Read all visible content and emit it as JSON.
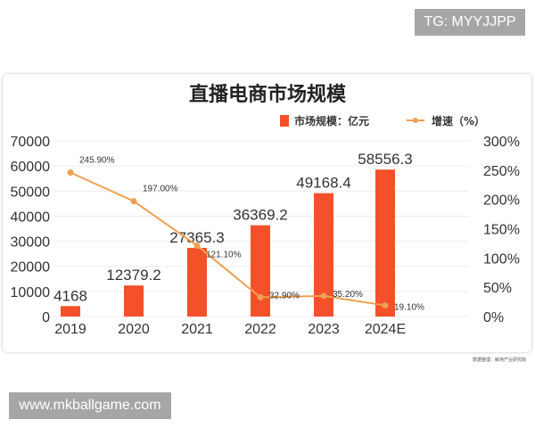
{
  "watermarks": {
    "top": "TG: MYYJJPP",
    "bottom": "www.mkballgame.com"
  },
  "source_note": "数据整理：鲸地产业研究院",
  "colors": {
    "bar": "#f4502a",
    "line": "#f0a050",
    "grid": "#ececec"
  },
  "chart_data": {
    "type": "bar+line",
    "title": "直播电商市场规模",
    "categories": [
      "2019",
      "2020",
      "2021",
      "2022",
      "2023",
      "2024E"
    ],
    "series": [
      {
        "name": "市场规模：亿元",
        "type": "bar",
        "axis": "left",
        "values": [
          4168,
          12379.2,
          27365.3,
          36369.2,
          49168.4,
          58556.3
        ],
        "labels": [
          "4168",
          "12379.2",
          "27365.3",
          "36369.2",
          "49168.4",
          "58556.3"
        ]
      },
      {
        "name": "增速（%）",
        "type": "line",
        "axis": "right",
        "values": [
          245.9,
          197.0,
          121.1,
          32.9,
          35.2,
          19.1
        ],
        "labels": [
          "245.90%",
          "197.00%",
          "121.10%",
          "32.90%",
          "35.20%",
          "19.10%"
        ]
      }
    ],
    "left_axis": {
      "ylim": [
        0,
        70000
      ],
      "ticks": [
        "0",
        "10000",
        "20000",
        "30000",
        "40000",
        "50000",
        "60000",
        "70000"
      ]
    },
    "right_axis": {
      "ylim": [
        0,
        300
      ],
      "ticks": [
        "0%",
        "50%",
        "100%",
        "150%",
        "200%",
        "250%",
        "300%"
      ]
    },
    "grid": true,
    "legend": "top-right"
  }
}
